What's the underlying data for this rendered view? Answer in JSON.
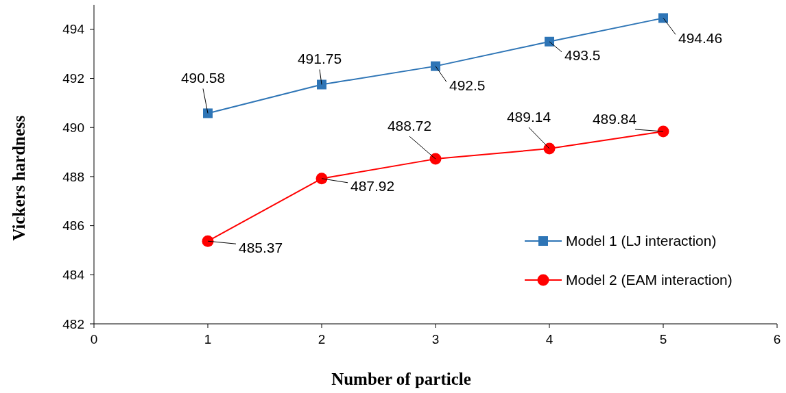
{
  "chart_data": {
    "type": "line",
    "xlabel": "Number of particle",
    "ylabel": "Vickers hardness",
    "x": [
      1,
      2,
      3,
      4,
      5
    ],
    "series": [
      {
        "name": "Model 1 (LJ interaction)",
        "color": "#2e75b6",
        "values": [
          490.58,
          491.75,
          492.5,
          493.5,
          494.46
        ],
        "marker": "square"
      },
      {
        "name": "Model 2 (EAM interaction)",
        "color": "#ff0000",
        "values": [
          485.37,
          487.92,
          488.72,
          489.14,
          489.84
        ],
        "marker": "circle"
      }
    ],
    "xlim": [
      0,
      6
    ],
    "xticks": [
      0,
      1,
      2,
      3,
      4,
      5,
      6
    ],
    "ylim": [
      482,
      495
    ],
    "yticks": [
      482,
      484,
      486,
      488,
      490,
      492,
      494
    ],
    "data_labels": true,
    "grid": false,
    "legend": "bottom right",
    "line_style": "solid"
  }
}
